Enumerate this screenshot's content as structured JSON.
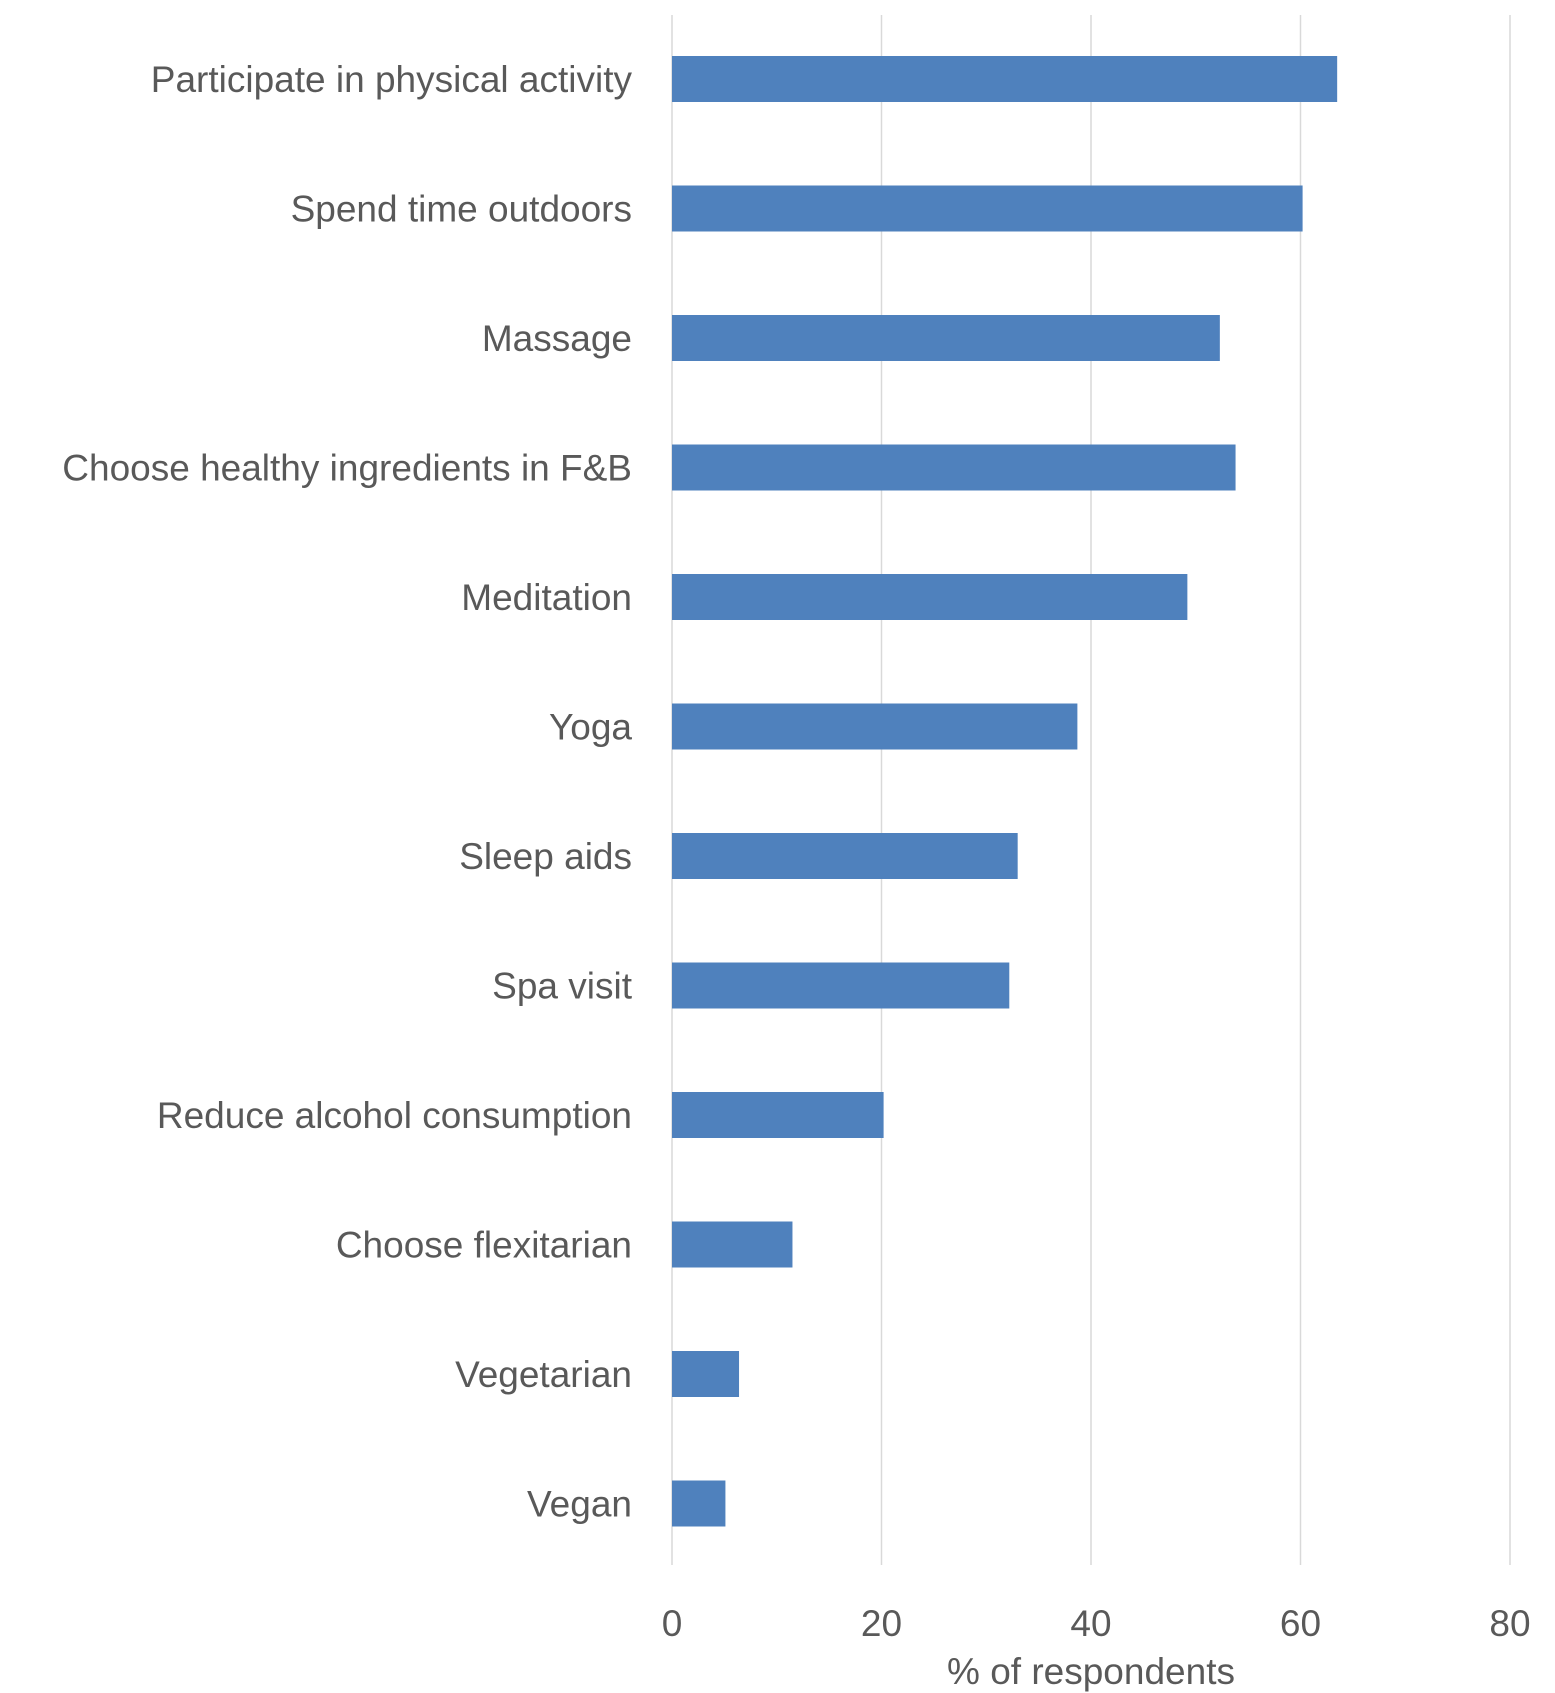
{
  "chart_data": {
    "type": "bar",
    "orientation": "horizontal",
    "categories": [
      "Participate in physical activity",
      "Spend time outdoors",
      "Massage",
      "Choose healthy ingredients in F&B",
      "Meditation",
      "Yoga",
      "Sleep aids",
      "Spa visit",
      "Reduce alcohol consumption",
      "Choose flexitarian",
      "Vegetarian",
      "Vegan"
    ],
    "values": [
      63.5,
      60.2,
      52.3,
      53.8,
      49.2,
      38.7,
      33.0,
      32.2,
      20.2,
      11.5,
      6.4,
      5.1
    ],
    "title": "",
    "xlabel": "% of respondents",
    "ylabel": "",
    "xlim": [
      0,
      80
    ],
    "xticks": [
      "0",
      "20",
      "40",
      "60",
      "80"
    ],
    "grid": "vertical",
    "bar_color": "#4f81bd",
    "legend": "none"
  }
}
